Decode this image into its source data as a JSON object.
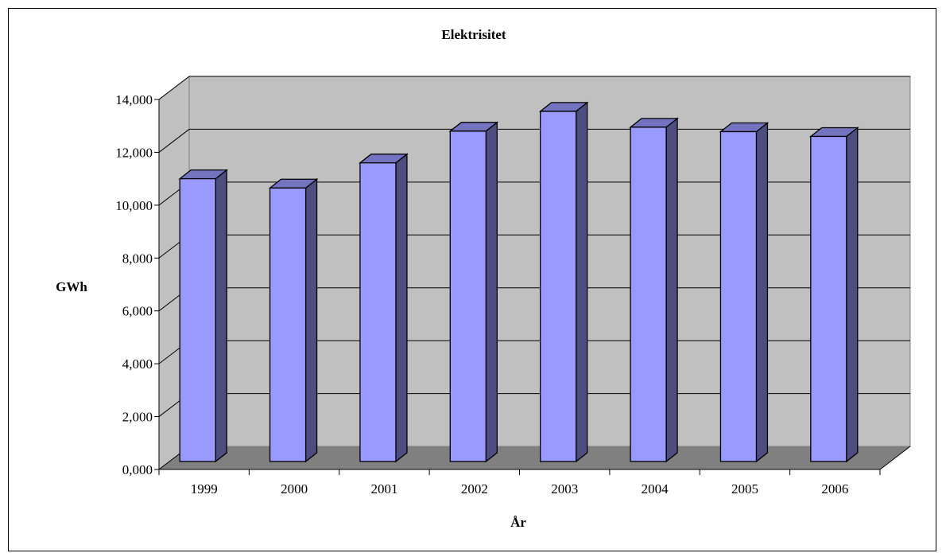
{
  "chart_data": {
    "type": "bar",
    "title": "Elektrisitet",
    "xlabel": "År",
    "ylabel": "GWh",
    "categories": [
      "1999",
      "2000",
      "2001",
      "2002",
      "2003",
      "2004",
      "2005",
      "2006"
    ],
    "values": [
      10700,
      10350,
      11300,
      12500,
      13250,
      12650,
      12480,
      12300
    ],
    "ylim": [
      0,
      14000
    ],
    "yticks": [
      "0,000",
      "2,000",
      "4,000",
      "6,000",
      "8,000",
      "10,000",
      "12,000",
      "14,000"
    ],
    "grid": true,
    "legend": "none",
    "style": "3d-column",
    "colors": {
      "bar_front": "#9999ff",
      "bar_side": "#4d4d80",
      "bar_top": "#7373bf",
      "wall": "#c0c0c0",
      "floor": "#808080",
      "grid": "#000000"
    }
  }
}
